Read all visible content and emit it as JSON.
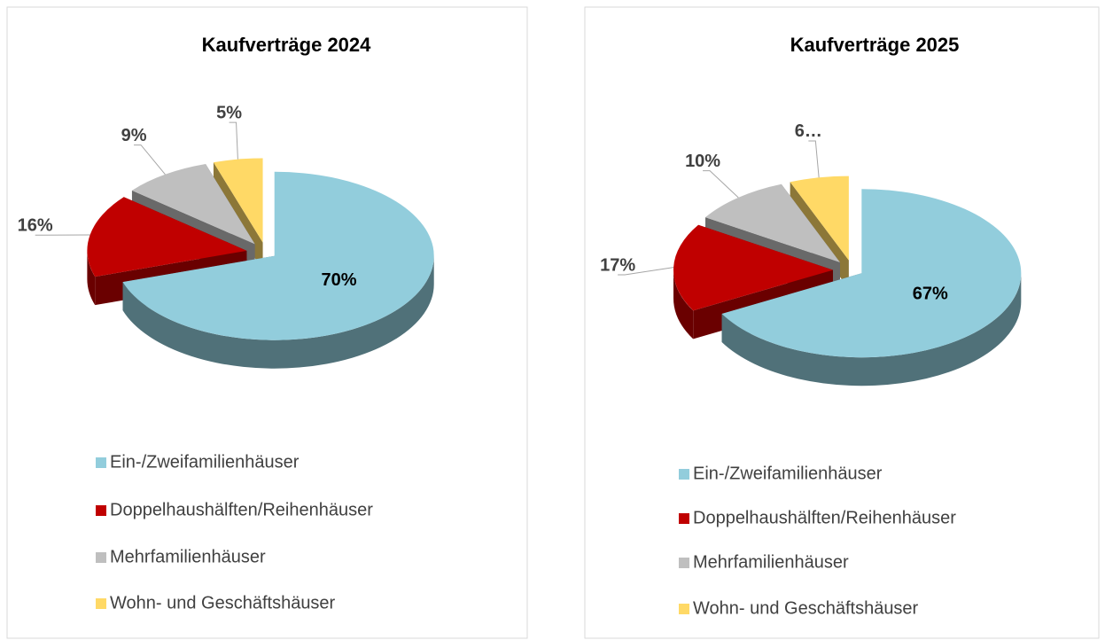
{
  "chart_data": [
    {
      "type": "pie",
      "title": "Kaufverträge 2024",
      "categories": [
        "Ein-/Zweifamilienhäuser",
        "Doppelhaushälften/Reihenhäuser",
        "Mehrfamilienhäuser",
        "Wohn- und Geschäftshäuser"
      ],
      "values": [
        70,
        16,
        9,
        5
      ],
      "value_labels": [
        "70%",
        "16%",
        "9%",
        "5%"
      ],
      "colors": [
        "#92cddc",
        "#c00000",
        "#bfbfbf",
        "#ffd966"
      ]
    },
    {
      "type": "pie",
      "title": "Kaufverträge 2025",
      "categories": [
        "Ein-/Zweifamilienhäuser",
        "Doppelhaushälften/Reihenhäuser",
        "Mehrfamilienhäuser",
        "Wohn- und Geschäftshäuser"
      ],
      "values": [
        67,
        17,
        10,
        6
      ],
      "value_labels": [
        "67%",
        "17%",
        "10%",
        "6…"
      ],
      "colors": [
        "#92cddc",
        "#c00000",
        "#bfbfbf",
        "#ffd966"
      ]
    }
  ]
}
